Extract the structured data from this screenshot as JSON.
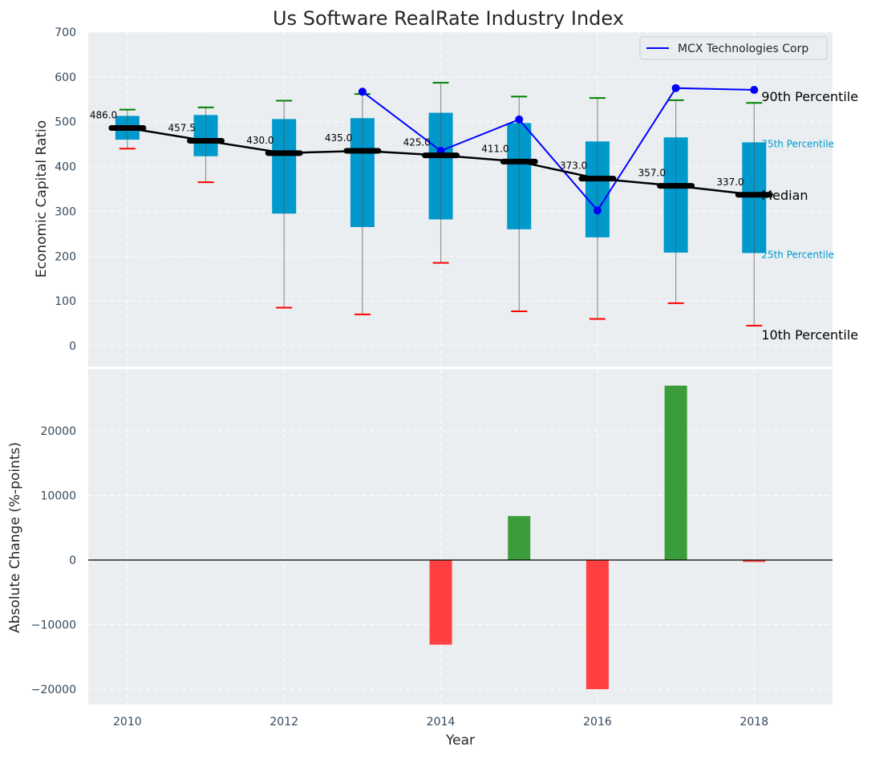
{
  "chart_data": [
    {
      "type": "box",
      "title": "Us Software RealRate Industry Index",
      "xlabel": "",
      "ylabel": "Economic Capital Ratio",
      "ylim": [
        -50,
        700
      ],
      "yticks": [
        0,
        100,
        200,
        300,
        400,
        500,
        600,
        700
      ],
      "grid": true,
      "legend": {
        "placement": "top-right",
        "entries": [
          "MCX Technologies Corp"
        ]
      },
      "years": [
        2010,
        2011,
        2012,
        2013,
        2014,
        2015,
        2016,
        2017,
        2018
      ],
      "p10": [
        440,
        365,
        85,
        70,
        185,
        77,
        60,
        95,
        45
      ],
      "p25": [
        460,
        423,
        295,
        265,
        282,
        260,
        242,
        208,
        207
      ],
      "median": [
        486.0,
        457.5,
        430.0,
        435.0,
        425.0,
        411.0,
        373.0,
        357.0,
        337.0
      ],
      "p75": [
        513,
        515,
        506,
        508,
        520,
        497,
        456,
        465,
        454
      ],
      "p90": [
        527,
        532,
        547,
        562,
        587,
        556,
        553,
        548,
        542
      ],
      "median_labels": [
        "486.0",
        "457.5",
        "430.0",
        "435.0",
        "425.0",
        "411.0",
        "373.0",
        "357.0",
        "337.0"
      ],
      "company_series": {
        "name": "MCX Technologies Corp",
        "years": [
          2013,
          2014,
          2015,
          2016,
          2017,
          2018
        ],
        "values": [
          567,
          435,
          505,
          302,
          575,
          571
        ]
      },
      "annotations": [
        "90th Percentile",
        "75th Percentile",
        "Median",
        "25th Percentile",
        "10th Percentile"
      ],
      "colors": {
        "box": "#0099cc",
        "median": "#000000",
        "p90": "#008000",
        "p10": "#ff0000",
        "company": "#0000ff",
        "whisker": "#808080",
        "annot_box": "#0099cc"
      }
    },
    {
      "type": "bar",
      "xlabel": "Year",
      "ylabel": "Absolute Change (%-points)",
      "ylim": [
        -22500,
        27500
      ],
      "yticks": [
        -20000,
        -10000,
        0,
        10000,
        20000
      ],
      "ytick_labels": [
        "−20000",
        "−10000",
        "0",
        "10000",
        "20000"
      ],
      "xticks": [
        2010,
        2012,
        2014,
        2016,
        2018
      ],
      "xlim": [
        2009.5,
        2019
      ],
      "grid": true,
      "categories": [
        2014,
        2015,
        2016,
        2017,
        2018
      ],
      "values": [
        -13100,
        6800,
        -20000,
        27000,
        -300
      ],
      "colors": {
        "positive": "#3a9c3a",
        "negative": "#ff4040"
      }
    }
  ]
}
